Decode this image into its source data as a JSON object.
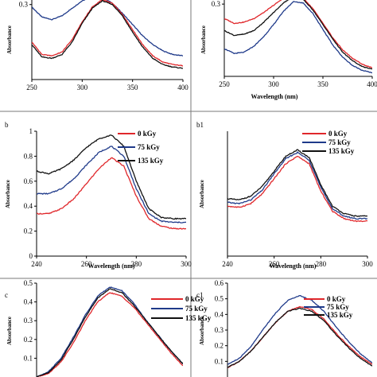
{
  "chart_data": [
    {
      "type": "line",
      "label": "",
      "xlabel": "",
      "ylabel": "Absorbance",
      "xlim": [
        250,
        400
      ],
      "ylim": [
        0,
        0.35
      ],
      "xticks": [
        250,
        300,
        350,
        400
      ],
      "yticks": [
        0.3
      ],
      "legend": [],
      "series": [
        {
          "color": "#1f3a8a",
          "x": [
            250,
            260,
            270,
            280,
            290,
            300,
            310,
            320,
            330,
            340,
            350,
            360,
            370,
            380,
            390,
            400
          ],
          "y": [
            0.29,
            0.25,
            0.24,
            0.255,
            0.285,
            0.315,
            0.335,
            0.33,
            0.305,
            0.265,
            0.22,
            0.175,
            0.14,
            0.115,
            0.1,
            0.095
          ]
        },
        {
          "color": "#e0272b",
          "x": [
            250,
            260,
            270,
            280,
            290,
            300,
            310,
            320,
            330,
            340,
            350,
            360,
            370,
            380,
            390,
            400
          ],
          "y": [
            0.15,
            0.1,
            0.095,
            0.11,
            0.16,
            0.23,
            0.29,
            0.32,
            0.305,
            0.26,
            0.2,
            0.14,
            0.095,
            0.07,
            0.06,
            0.055
          ]
        },
        {
          "color": "#111111",
          "x": [
            250,
            260,
            270,
            280,
            290,
            300,
            310,
            320,
            330,
            340,
            350,
            360,
            370,
            380,
            390,
            400
          ],
          "y": [
            0.14,
            0.09,
            0.085,
            0.1,
            0.15,
            0.225,
            0.285,
            0.315,
            0.3,
            0.255,
            0.19,
            0.13,
            0.085,
            0.06,
            0.05,
            0.045
          ]
        }
      ]
    },
    {
      "type": "line",
      "label": "",
      "xlabel": "Wavelength (nm)",
      "ylabel": "Absorbance",
      "xlim": [
        250,
        400
      ],
      "ylim": [
        0,
        0.35
      ],
      "xticks": [
        250,
        300,
        350,
        400
      ],
      "yticks": [
        0.3
      ],
      "legend": [],
      "series": [
        {
          "color": "#e0272b",
          "x": [
            250,
            260,
            270,
            280,
            290,
            300,
            310,
            320,
            330,
            340,
            350,
            360,
            370,
            380,
            390,
            400
          ],
          "y": [
            0.24,
            0.22,
            0.225,
            0.24,
            0.265,
            0.295,
            0.325,
            0.34,
            0.325,
            0.28,
            0.22,
            0.16,
            0.11,
            0.075,
            0.05,
            0.035
          ]
        },
        {
          "color": "#111111",
          "x": [
            250,
            260,
            270,
            280,
            290,
            300,
            310,
            320,
            330,
            340,
            350,
            360,
            370,
            380,
            390,
            400
          ],
          "y": [
            0.19,
            0.17,
            0.175,
            0.19,
            0.225,
            0.265,
            0.305,
            0.33,
            0.32,
            0.275,
            0.215,
            0.155,
            0.1,
            0.065,
            0.04,
            0.03
          ]
        },
        {
          "color": "#1f3a8a",
          "x": [
            250,
            260,
            270,
            280,
            290,
            300,
            310,
            320,
            330,
            340,
            350,
            360,
            370,
            380,
            390,
            400
          ],
          "y": [
            0.115,
            0.095,
            0.1,
            0.125,
            0.165,
            0.215,
            0.27,
            0.31,
            0.305,
            0.26,
            0.195,
            0.13,
            0.08,
            0.045,
            0.025,
            0.015
          ]
        }
      ]
    },
    {
      "type": "line",
      "label": "b",
      "xlabel": "Wavelength (nm)",
      "ylabel": "Absorbance",
      "xlim": [
        240,
        300
      ],
      "ylim": [
        0,
        1
      ],
      "xticks": [
        240,
        260,
        280,
        300
      ],
      "yticks": [
        0,
        0.2,
        0.4,
        0.6,
        0.8,
        1
      ],
      "legend": [
        "0 kGy",
        "75 kGy",
        "135 kGy"
      ],
      "series": [
        {
          "name": "0 kGy",
          "color": "#e0272b",
          "x": [
            240,
            245,
            250,
            255,
            260,
            265,
            270,
            275,
            280,
            285,
            290,
            295,
            300
          ],
          "y": [
            0.34,
            0.34,
            0.38,
            0.46,
            0.58,
            0.7,
            0.79,
            0.72,
            0.48,
            0.3,
            0.24,
            0.22,
            0.22
          ]
        },
        {
          "name": "75 kGy",
          "color": "#1f3a8a",
          "x": [
            240,
            245,
            250,
            255,
            260,
            265,
            270,
            275,
            280,
            285,
            290,
            295,
            300
          ],
          "y": [
            0.5,
            0.5,
            0.54,
            0.62,
            0.73,
            0.83,
            0.88,
            0.8,
            0.54,
            0.34,
            0.28,
            0.27,
            0.27
          ]
        },
        {
          "name": "135 kGy",
          "color": "#111111",
          "x": [
            240,
            245,
            250,
            255,
            260,
            265,
            270,
            275,
            280,
            285,
            290,
            295,
            300
          ],
          "y": [
            0.68,
            0.66,
            0.7,
            0.77,
            0.87,
            0.94,
            0.97,
            0.88,
            0.6,
            0.38,
            0.31,
            0.3,
            0.3
          ]
        }
      ]
    },
    {
      "type": "line",
      "label": "b1",
      "xlabel": "Wavelength (nm)",
      "ylabel": "Absorbance",
      "xlim": [
        240,
        300
      ],
      "ylim": [
        0,
        1
      ],
      "xticks": [
        240,
        260,
        280,
        300
      ],
      "yticks": [],
      "legend": [
        "0 kGy",
        "75 kGy",
        "135 kGy"
      ],
      "series": [
        {
          "name": "0 kGy",
          "color": "#e0272b",
          "x": [
            240,
            245,
            250,
            255,
            260,
            265,
            270,
            275,
            280,
            285,
            290,
            295,
            300
          ],
          "y": [
            0.4,
            0.39,
            0.42,
            0.5,
            0.62,
            0.74,
            0.8,
            0.74,
            0.52,
            0.36,
            0.3,
            0.28,
            0.28
          ]
        },
        {
          "name": "75 kGy",
          "color": "#1f3a8a",
          "x": [
            240,
            245,
            250,
            255,
            260,
            265,
            270,
            275,
            280,
            285,
            290,
            295,
            300
          ],
          "y": [
            0.43,
            0.42,
            0.45,
            0.53,
            0.66,
            0.78,
            0.83,
            0.77,
            0.55,
            0.38,
            0.32,
            0.3,
            0.3
          ]
        },
        {
          "name": "135 kGy",
          "color": "#111111",
          "x": [
            240,
            245,
            250,
            255,
            260,
            265,
            270,
            275,
            280,
            285,
            290,
            295,
            300
          ],
          "y": [
            0.46,
            0.45,
            0.48,
            0.56,
            0.68,
            0.8,
            0.85,
            0.79,
            0.57,
            0.4,
            0.34,
            0.32,
            0.32
          ]
        }
      ]
    },
    {
      "type": "line",
      "label": "c",
      "xlabel": "",
      "ylabel": "Absorbance",
      "xlim": [
        240,
        300
      ],
      "ylim": [
        0,
        0.5
      ],
      "xticks": [],
      "yticks": [
        0.1,
        0.2,
        0.3,
        0.4,
        0.5
      ],
      "legend": [
        "0 kGy",
        "75 kGy",
        "135 kGy"
      ],
      "series": [
        {
          "name": "0 kGy",
          "color": "#e0272b",
          "x": [
            240,
            245,
            250,
            255,
            260,
            265,
            270,
            275,
            280,
            285,
            290,
            295,
            300
          ],
          "y": [
            0.0,
            0.02,
            0.08,
            0.18,
            0.3,
            0.4,
            0.45,
            0.43,
            0.37,
            0.29,
            0.21,
            0.13,
            0.06
          ]
        },
        {
          "name": "75 kGy",
          "color": "#1f3a8a",
          "x": [
            240,
            245,
            250,
            255,
            260,
            265,
            270,
            275,
            280,
            285,
            290,
            295,
            300
          ],
          "y": [
            0.0,
            0.03,
            0.1,
            0.21,
            0.33,
            0.43,
            0.48,
            0.46,
            0.39,
            0.3,
            0.22,
            0.14,
            0.07
          ]
        },
        {
          "name": "135 kGy",
          "color": "#111111",
          "x": [
            240,
            245,
            250,
            255,
            260,
            265,
            270,
            275,
            280,
            285,
            290,
            295,
            300
          ],
          "y": [
            0.0,
            0.025,
            0.09,
            0.2,
            0.32,
            0.42,
            0.47,
            0.45,
            0.38,
            0.3,
            0.22,
            0.14,
            0.07
          ]
        }
      ]
    },
    {
      "type": "line",
      "label": "c1",
      "xlabel": "",
      "ylabel": "Absorbance",
      "xlim": [
        240,
        300
      ],
      "ylim": [
        0,
        0.6
      ],
      "xticks": [],
      "yticks": [
        0.1,
        0.2,
        0.3,
        0.4,
        0.5,
        0.6
      ],
      "legend": [
        "0 kGy",
        "75 kGy",
        "135 kGy"
      ],
      "series": [
        {
          "name": "0 kGy",
          "color": "#e0272b",
          "x": [
            240,
            245,
            250,
            255,
            260,
            265,
            270,
            275,
            280,
            285,
            290,
            295,
            300
          ],
          "y": [
            0.06,
            0.1,
            0.17,
            0.26,
            0.35,
            0.42,
            0.45,
            0.43,
            0.37,
            0.28,
            0.2,
            0.13,
            0.08
          ]
        },
        {
          "name": "75 kGy",
          "color": "#1f3a8a",
          "x": [
            240,
            245,
            250,
            255,
            260,
            265,
            270,
            275,
            280,
            285,
            290,
            295,
            300
          ],
          "y": [
            0.08,
            0.12,
            0.2,
            0.31,
            0.41,
            0.49,
            0.52,
            0.49,
            0.42,
            0.32,
            0.23,
            0.15,
            0.09
          ]
        },
        {
          "name": "135 kGy",
          "color": "#111111",
          "x": [
            240,
            245,
            250,
            255,
            260,
            265,
            270,
            275,
            280,
            285,
            290,
            295,
            300
          ],
          "y": [
            0.06,
            0.1,
            0.17,
            0.26,
            0.35,
            0.42,
            0.44,
            0.42,
            0.36,
            0.27,
            0.19,
            0.12,
            0.07
          ]
        }
      ]
    }
  ]
}
